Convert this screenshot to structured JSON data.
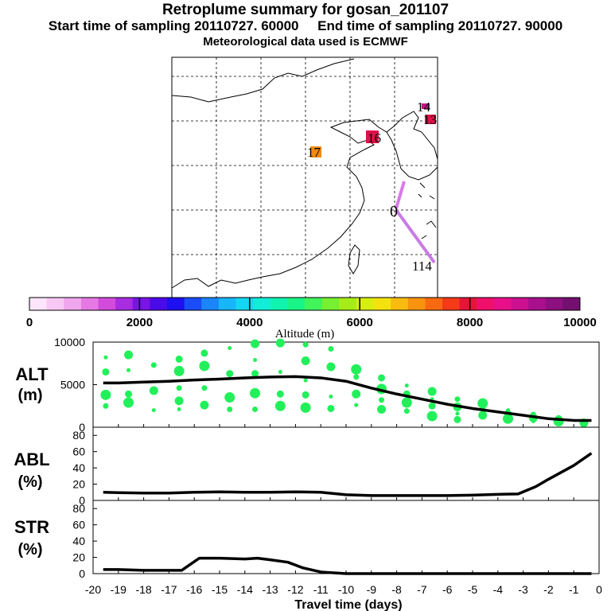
{
  "header": {
    "title": "Retroplume summary for gosan_201107",
    "sampling": "Start time of sampling 20110727. 60000     End time of sampling 20110727. 90000",
    "met": "Meteorological data used is ECMWF"
  },
  "map": {
    "labels": [
      {
        "text": "14",
        "color": "#c81487"
      },
      {
        "text": "13",
        "color": "#e0104a"
      },
      {
        "text": "16",
        "color": "#e0104a"
      },
      {
        "text": "17",
        "color": "#f08a10"
      },
      {
        "text": "0",
        "color": "#000000"
      },
      {
        "text": "114",
        "color": "#a020f0"
      }
    ]
  },
  "colorbar": {
    "ticks": [
      "0",
      "2000",
      "4000",
      "6000",
      "8000",
      "10000"
    ],
    "label": "Altitude (m)",
    "colors": [
      "#fde5fb",
      "#f8c8f4",
      "#f0a6ec",
      "#e678e4",
      "#d24bdb",
      "#a82de0",
      "#7a14e4",
      "#4b0ae8",
      "#1e10f0",
      "#1a4cf8",
      "#1a86fa",
      "#17b6fa",
      "#14d6f2",
      "#12ecd8",
      "#10f4b0",
      "#18f486",
      "#40f45a",
      "#76f030",
      "#a6ec18",
      "#d6ee10",
      "#f4e210",
      "#f8bc10",
      "#fa9410",
      "#f86a12",
      "#f43a18",
      "#e61436",
      "#f0106c",
      "#e8108a",
      "#cc1090",
      "#aa108e",
      "#8c1080",
      "#741070"
    ]
  },
  "chart_data": [
    {
      "type": "line",
      "panel": "ALT",
      "label_main": "ALT",
      "label_unit": "(m)",
      "ylim": [
        0,
        10000
      ],
      "yticks": [
        "0",
        "5000",
        "10000"
      ],
      "x": [
        -19.6,
        -19,
        -18,
        -17,
        -16,
        -15,
        -14,
        -13,
        -12,
        -11,
        -10,
        -9,
        -8,
        -7,
        -6,
        -5,
        -4,
        -3,
        -2,
        -1,
        -0.3
      ],
      "y": [
        5200,
        5200,
        5300,
        5400,
        5550,
        5650,
        5800,
        5900,
        5950,
        5800,
        5400,
        4600,
        3900,
        3300,
        2700,
        2200,
        1800,
        1400,
        1000,
        800,
        800
      ],
      "scatter_color": "#22f05a",
      "scatter": [
        [
          -19.5,
          8200
        ],
        [
          -19.5,
          6500
        ],
        [
          -19.5,
          3800
        ],
        [
          -19.5,
          2500
        ],
        [
          -18.6,
          8500
        ],
        [
          -18.6,
          6700
        ],
        [
          -18.6,
          3900
        ],
        [
          -18.6,
          2900
        ],
        [
          -17.6,
          7300
        ],
        [
          -17.6,
          4300
        ],
        [
          -17.6,
          2000
        ],
        [
          -16.6,
          8000
        ],
        [
          -16.6,
          6600
        ],
        [
          -16.6,
          4600
        ],
        [
          -16.6,
          3100
        ],
        [
          -16.6,
          2100
        ],
        [
          -15.6,
          8700
        ],
        [
          -15.6,
          7200
        ],
        [
          -15.6,
          4600
        ],
        [
          -15.6,
          2600
        ],
        [
          -14.6,
          9300
        ],
        [
          -14.6,
          6300
        ],
        [
          -14.6,
          3500
        ],
        [
          -14.6,
          2100
        ],
        [
          -13.6,
          9800
        ],
        [
          -13.6,
          7900
        ],
        [
          -13.6,
          6300
        ],
        [
          -13.6,
          4000
        ],
        [
          -13.6,
          2100
        ],
        [
          -12.6,
          9900
        ],
        [
          -12.6,
          6500
        ],
        [
          -12.6,
          3900
        ],
        [
          -12.6,
          2500
        ],
        [
          -11.6,
          9700
        ],
        [
          -11.6,
          7800
        ],
        [
          -11.6,
          5500
        ],
        [
          -11.6,
          3800
        ],
        [
          -11.6,
          2300
        ],
        [
          -10.6,
          9200
        ],
        [
          -10.6,
          7100
        ],
        [
          -10.6,
          3600
        ],
        [
          -10.6,
          2200
        ],
        [
          -9.6,
          6800
        ],
        [
          -9.6,
          5900
        ],
        [
          -9.6,
          3900
        ],
        [
          -9.6,
          2600
        ],
        [
          -8.6,
          5800
        ],
        [
          -8.6,
          4500
        ],
        [
          -8.6,
          3200
        ],
        [
          -8.6,
          2100
        ],
        [
          -7.6,
          4900
        ],
        [
          -7.6,
          3900
        ],
        [
          -7.6,
          2900
        ],
        [
          -7.6,
          1900
        ],
        [
          -6.6,
          4200
        ],
        [
          -6.6,
          3300
        ],
        [
          -6.6,
          2500
        ],
        [
          -6.6,
          1300
        ],
        [
          -5.6,
          3300
        ],
        [
          -5.6,
          2400
        ],
        [
          -5.6,
          1600
        ],
        [
          -5.6,
          900
        ],
        [
          -4.6,
          2800
        ],
        [
          -4.6,
          2200
        ],
        [
          -4.6,
          1400
        ],
        [
          -3.6,
          2000
        ],
        [
          -3.6,
          1600
        ],
        [
          -3.6,
          1000
        ],
        [
          -2.6,
          1500
        ],
        [
          -2.6,
          1100
        ],
        [
          -2.6,
          700
        ],
        [
          -1.6,
          1000
        ],
        [
          -1.6,
          700
        ],
        [
          -0.6,
          700
        ],
        [
          -0.6,
          500
        ]
      ]
    },
    {
      "type": "line",
      "panel": "ABL",
      "label_main": "ABL",
      "label_unit": "(%)",
      "ylim": [
        0,
        90
      ],
      "yticks": [
        "0",
        "20",
        "40",
        "60",
        "80"
      ],
      "x": [
        -19.6,
        -19,
        -18,
        -17,
        -16,
        -15,
        -14,
        -13,
        -12,
        -11,
        -10,
        -9,
        -8,
        -7,
        -6,
        -5,
        -4,
        -3.2,
        -2.5,
        -2,
        -1,
        -0.3
      ],
      "y": [
        10,
        9.5,
        9,
        9,
        10,
        10.5,
        10,
        10,
        10.5,
        10,
        7,
        6,
        6,
        6,
        6,
        6.5,
        7.5,
        8,
        17,
        26,
        43,
        58
      ]
    },
    {
      "type": "line",
      "panel": "STR",
      "label_main": "STR",
      "label_unit": "(%)",
      "ylim": [
        0,
        90
      ],
      "yticks": [
        "0",
        "20",
        "40",
        "60",
        "80"
      ],
      "x": [
        -19.6,
        -19,
        -18,
        -17,
        -16.5,
        -15.8,
        -15,
        -14,
        -13.5,
        -13,
        -12.3,
        -11.7,
        -11,
        -10.5,
        -10,
        -5,
        -0.3
      ],
      "y": [
        5,
        5,
        4,
        4,
        4,
        19,
        19,
        18,
        19,
        17,
        14,
        7,
        2,
        1,
        0,
        0,
        0
      ],
      "xlim": [
        -20,
        0
      ],
      "xticks": [
        "-20",
        "-19",
        "-18",
        "-17",
        "-16",
        "-15",
        "-14",
        "-13",
        "-12",
        "-11",
        "-10",
        "-9",
        "-8",
        "-7",
        "-6",
        "-5",
        "-4",
        "-3",
        "-2",
        "-1",
        "0"
      ],
      "xlabel": "Travel time (days)"
    }
  ]
}
